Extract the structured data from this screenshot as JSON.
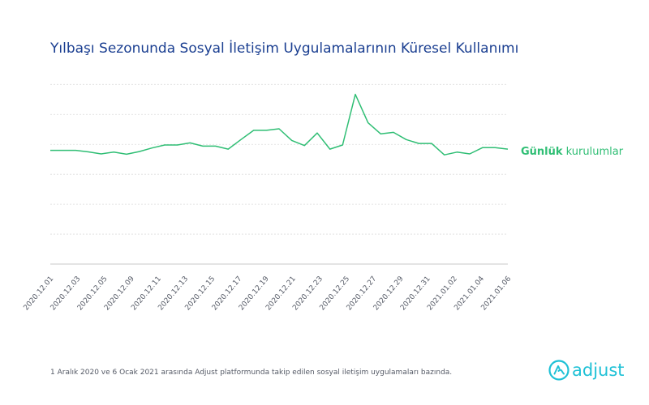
{
  "title": "Yılbaşı Sezonunda Sosyal İletişim Uygulamalarının Küresel Kullanımı",
  "series_label": {
    "bold": "Günlük",
    "rest": " kurulumlar"
  },
  "footnote": "1 Aralık 2020 ve 6 Ocak 2021 arasında Adjust platformunda takip edilen sosyal iletişim uygulamaları bazında.",
  "logo": {
    "text": "adjust",
    "icon": "adjust-logo-icon"
  },
  "colors": {
    "title": "#1b3f91",
    "line": "#2fbe74",
    "grid": "#dcdcdc",
    "axis": "#c8c8c8",
    "tick": "#555a66",
    "logo": "#1fc1d6"
  },
  "chart_data": {
    "type": "line",
    "title": "Yılbaşı Sezonunda Sosyal İletişim Uygulamalarının Küresel Kullanımı",
    "xlabel": "",
    "ylabel": "",
    "x": [
      "2020.12.01",
      "2020.12.02",
      "2020.12.03",
      "2020.12.04",
      "2020.12.05",
      "2020.12.06",
      "2020.12.07",
      "2020.12.08",
      "2020.12.09",
      "2020.12.10",
      "2020.12.11",
      "2020.12.12",
      "2020.12.13",
      "2020.12.14",
      "2020.12.15",
      "2020.12.16",
      "2020.12.17",
      "2020.12.18",
      "2020.12.19",
      "2020.12.20",
      "2020.12.21",
      "2020.12.22",
      "2020.12.23",
      "2020.12.24",
      "2020.12.25",
      "2020.12.26",
      "2020.12.27",
      "2020.12.28",
      "2020.12.29",
      "2020.12.30",
      "2020.12.31",
      "2021.01.01",
      "2021.01.02",
      "2021.01.03",
      "2021.01.04",
      "2021.01.05",
      "2021.01.06"
    ],
    "tick_labels": [
      "2020.12.01",
      "2020.12.03",
      "2020.12.05",
      "2020.12.09",
      "2020.12.11",
      "2020.12.13",
      "2020.12.15",
      "2020.12.17",
      "2020.12.19",
      "2020.12.21",
      "2020.12.23",
      "2020.12.25",
      "2020.12.27",
      "2020.12.29",
      "2020.12.31",
      "2021.01.02",
      "2021.01.04",
      "2021.01.06"
    ],
    "series": [
      {
        "name": "Günlük kurulumlar",
        "values": [
          3.8,
          3.8,
          3.8,
          3.75,
          3.68,
          3.74,
          3.67,
          3.76,
          3.88,
          3.98,
          3.98,
          4.05,
          3.94,
          3.94,
          3.84,
          4.16,
          4.47,
          4.47,
          4.52,
          4.13,
          3.96,
          4.38,
          3.84,
          3.98,
          5.67,
          4.72,
          4.35,
          4.4,
          4.16,
          4.03,
          4.03,
          3.65,
          3.74,
          3.68,
          3.89,
          3.89,
          3.84
        ]
      }
    ],
    "ylim": [
      0,
      7.2
    ],
    "y_gridlines": [
      0,
      1,
      2,
      3,
      4,
      5,
      6
    ],
    "grid": true,
    "y_tick_labels": false,
    "legend": "right"
  }
}
